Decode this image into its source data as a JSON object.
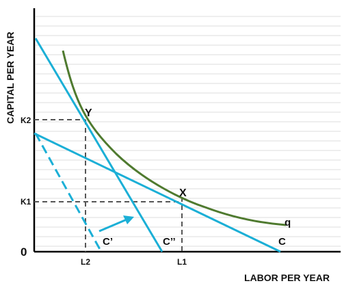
{
  "axes": {
    "y_label": "CAPITAL PER YEAR",
    "x_label": "LABOR PER YEAR",
    "origin_label": "0"
  },
  "ticks": {
    "k1": "K1",
    "k2": "K2",
    "l1": "L1",
    "l2": "L2"
  },
  "points": {
    "x": "X",
    "y": "Y"
  },
  "curves": {
    "isoquant": "q",
    "cost_original": "C",
    "cost_dashed": "C’",
    "cost_new": "C’’"
  },
  "colors": {
    "isocost_line": "#1BAFD6",
    "isoquant_curve": "#4F7A2F",
    "dashed_guides": "#555555",
    "grid": "#DDDDDD",
    "axis": "#000000"
  }
}
